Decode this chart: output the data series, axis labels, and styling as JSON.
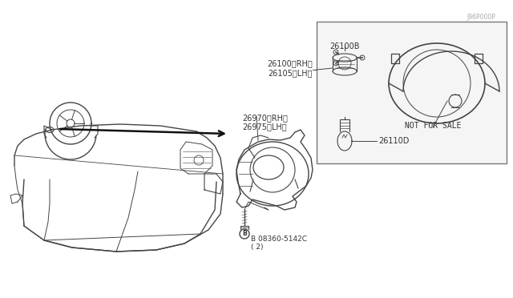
{
  "bg_color": "#ffffff",
  "line_color": "#444444",
  "text_color": "#333333",
  "part_labels": {
    "bolt": "B 08360-5142C\n( 2)",
    "assembly_rh_lh": "26970〈RH〉\n26975〈LH〉",
    "lamp_rh_lh": "26100〈RH〉\n26105〈LH〉",
    "bulb": "26110D",
    "socket": "26100B",
    "not_for_sale": "NOT FOR SALE"
  },
  "diagram_id": "J96P000P",
  "figsize": [
    6.4,
    3.72
  ],
  "dpi": 100
}
